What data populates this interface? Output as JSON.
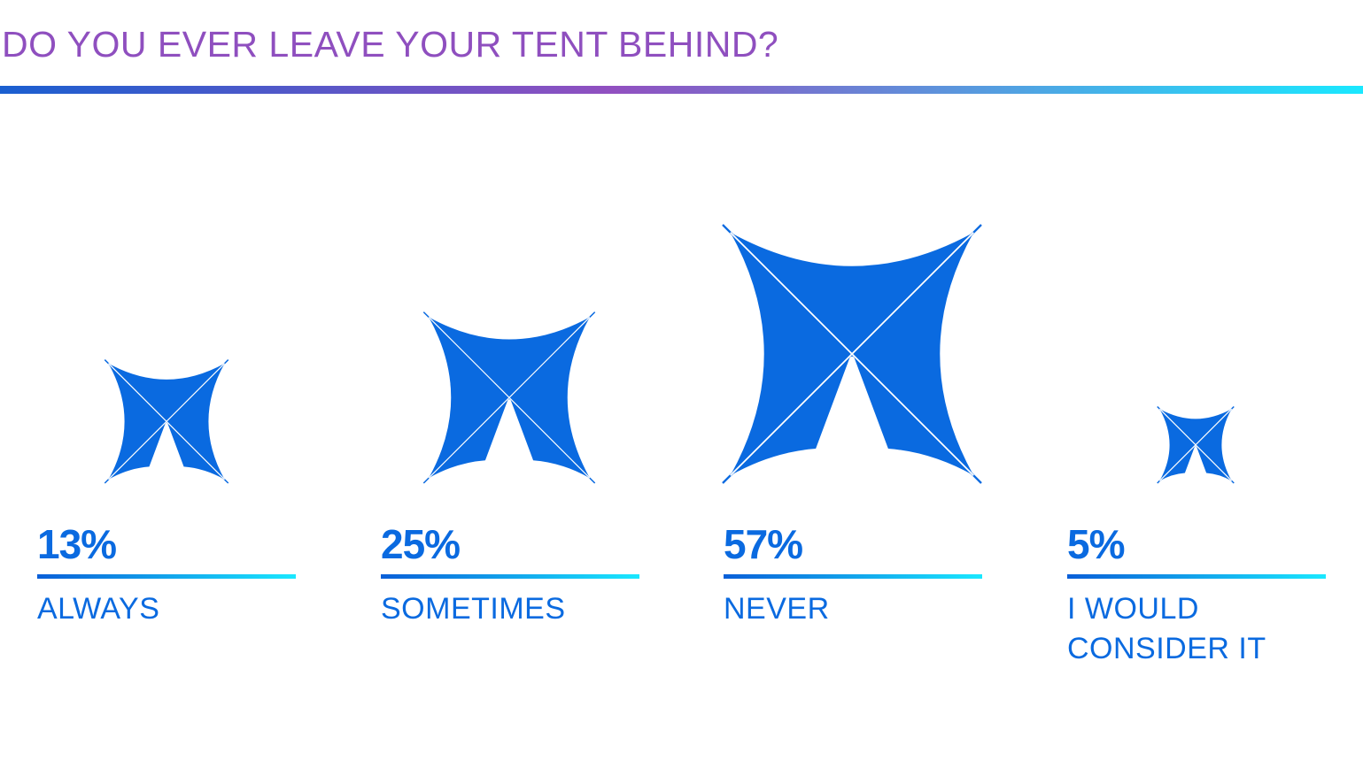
{
  "title": "DO YOU EVER LEAVE YOUR TENT BEHIND?",
  "colors": {
    "title": "#8f4fbf",
    "tent": "#0a6ae0",
    "text": "#0a6ae0",
    "rule_start": "#1a5fd0",
    "rule_mid": "#9150c0",
    "rule_end": "#1ae8ff",
    "item_rule_start": "#0a5fd8",
    "item_rule_end": "#1ae8ff"
  },
  "icon": "tent-shelter-icon",
  "chart_data": {
    "type": "pictograph",
    "title": "DO YOU EVER LEAVE YOUR TENT BEHIND?",
    "unit": "%",
    "categories": [
      "ALWAYS",
      "SOMETIMES",
      "NEVER",
      "I WOULD CONSIDER IT"
    ],
    "values": [
      13,
      25,
      57,
      5
    ],
    "items": [
      {
        "value": 13,
        "value_label": "13%",
        "label": "ALWAYS"
      },
      {
        "value": 25,
        "value_label": "25%",
        "label": "SOMETIMES"
      },
      {
        "value": 57,
        "value_label": "57%",
        "label": "NEVER"
      },
      {
        "value": 5,
        "value_label": "5%",
        "label": "I WOULD\nCONSIDER IT"
      }
    ]
  }
}
